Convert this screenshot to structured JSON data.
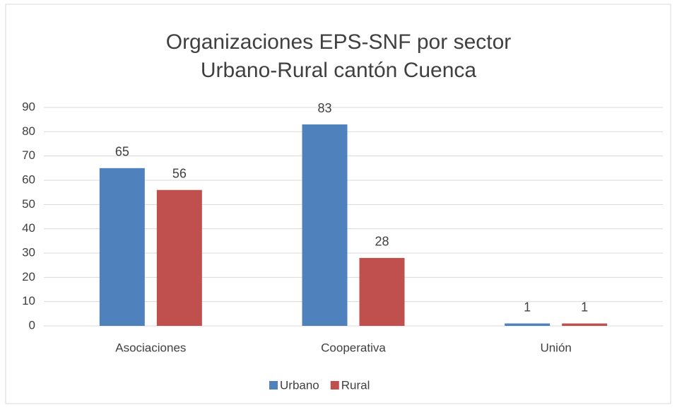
{
  "chart_data": {
    "type": "bar",
    "title": "Organizaciones EPS-SNF por sector Urbano-Rural cantón Cuenca",
    "categories": [
      "Asociaciones",
      "Cooperativa",
      "Unión"
    ],
    "series": [
      {
        "name": "Urbano",
        "color": "#4f81bd",
        "values": [
          65,
          83,
          1
        ]
      },
      {
        "name": "Rural",
        "color": "#c0504d",
        "values": [
          56,
          28,
          1
        ]
      }
    ],
    "ylim": [
      0,
      90
    ],
    "yticks": [
      0,
      10,
      20,
      30,
      40,
      50,
      60,
      70,
      80,
      90
    ],
    "grid": true,
    "legend": "bottom"
  }
}
